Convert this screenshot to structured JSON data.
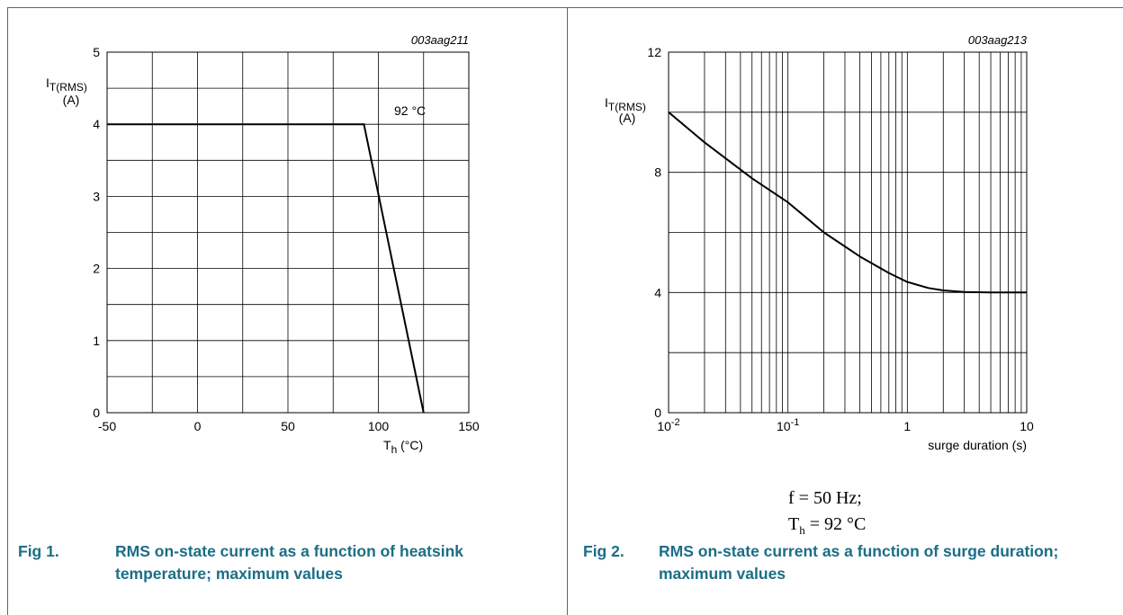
{
  "figures": [
    {
      "code": "003aag211",
      "caption_number": "Fig 1.",
      "caption_text": "RMS on-state current as a function of heatsink temperature; maximum values"
    },
    {
      "code": "003aag213",
      "caption_number": "Fig 2.",
      "caption_text": "RMS on-state current as a function of surge duration; maximum values",
      "conditions": [
        "f = 50 Hz;",
        "T_h = 92 °C"
      ]
    }
  ],
  "colors": {
    "caption": "#1b6e86",
    "frame": "#2a7a86",
    "grid": "#000000",
    "curve": "#000000"
  },
  "chart_data": [
    {
      "type": "line",
      "title": "",
      "ylabel": "I_T(RMS) (A)",
      "xlabel": "T_h (°C)",
      "xlim": [
        -50,
        150
      ],
      "ylim": [
        0,
        5
      ],
      "x_ticks": [
        -50,
        0,
        50,
        100,
        150
      ],
      "y_ticks": [
        0,
        1,
        2,
        3,
        4,
        5
      ],
      "grid": true,
      "annotations": [
        {
          "text": "92 °C"
        }
      ],
      "series": [
        {
          "x": [
            -50,
            92,
            125
          ],
          "y": [
            4,
            4,
            0
          ]
        }
      ]
    },
    {
      "type": "line",
      "title": "",
      "ylabel": "I_T(RMS) (A)",
      "xlabel": "surge duration (s)",
      "x_scale": "log",
      "xlim": [
        0.01,
        10
      ],
      "ylim": [
        0,
        12
      ],
      "x_tick_labels": [
        "10^-2",
        "10^-1",
        "1",
        "10"
      ],
      "y_ticks": [
        0,
        4,
        8,
        12
      ],
      "grid": true,
      "series": [
        {
          "x": [
            0.01,
            0.02,
            0.05,
            0.1,
            0.2,
            0.4,
            0.7,
            1.0,
            1.5,
            2.0,
            3.0,
            5.0,
            10.0
          ],
          "y": [
            10.0,
            9.0,
            7.8,
            7.0,
            6.0,
            5.2,
            4.65,
            4.35,
            4.15,
            4.07,
            4.02,
            4.0,
            4.0
          ]
        }
      ]
    }
  ]
}
